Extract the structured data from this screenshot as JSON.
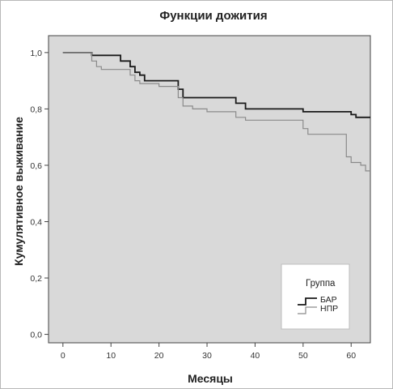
{
  "chart_data": {
    "type": "line",
    "step": true,
    "title": "Функции дожития",
    "xlabel": "Месяцы",
    "ylabel": "Кумулятивное выживание",
    "xlim": [
      -3,
      64
    ],
    "ylim": [
      -0.03,
      1.06
    ],
    "x_ticks": [
      0,
      10,
      20,
      30,
      40,
      50,
      60
    ],
    "y_ticks": [
      0,
      0.2,
      0.4,
      0.6,
      0.8,
      1.0
    ],
    "x_tick_labels": [
      "0",
      "10",
      "20",
      "30",
      "40",
      "50",
      "60"
    ],
    "y_tick_labels": [
      "0,0",
      "0,2",
      "0,4",
      "0,6",
      "0,8",
      "1,0"
    ],
    "grid": false,
    "legend": {
      "title": "Группа",
      "position": "bottom-right"
    },
    "series": [
      {
        "name": "БАР",
        "color": "#1a1a1a",
        "points": [
          [
            0,
            1.0
          ],
          [
            6,
            1.0
          ],
          [
            6,
            0.99
          ],
          [
            12,
            0.99
          ],
          [
            12,
            0.97
          ],
          [
            14,
            0.97
          ],
          [
            14,
            0.95
          ],
          [
            15,
            0.95
          ],
          [
            15,
            0.93
          ],
          [
            16,
            0.93
          ],
          [
            16,
            0.92
          ],
          [
            17,
            0.92
          ],
          [
            17,
            0.9
          ],
          [
            24,
            0.9
          ],
          [
            24,
            0.87
          ],
          [
            25,
            0.87
          ],
          [
            25,
            0.84
          ],
          [
            36,
            0.84
          ],
          [
            36,
            0.82
          ],
          [
            38,
            0.82
          ],
          [
            38,
            0.8
          ],
          [
            50,
            0.8
          ],
          [
            50,
            0.79
          ],
          [
            60,
            0.79
          ],
          [
            60,
            0.78
          ],
          [
            61,
            0.78
          ],
          [
            61,
            0.77
          ],
          [
            64,
            0.77
          ]
        ]
      },
      {
        "name": "НПР",
        "color": "#8a8a8a",
        "points": [
          [
            0,
            1.0
          ],
          [
            6,
            1.0
          ],
          [
            6,
            0.97
          ],
          [
            7,
            0.97
          ],
          [
            7,
            0.95
          ],
          [
            8,
            0.95
          ],
          [
            8,
            0.94
          ],
          [
            14,
            0.94
          ],
          [
            14,
            0.92
          ],
          [
            15,
            0.92
          ],
          [
            15,
            0.9
          ],
          [
            16,
            0.9
          ],
          [
            16,
            0.89
          ],
          [
            20,
            0.89
          ],
          [
            20,
            0.88
          ],
          [
            24,
            0.88
          ],
          [
            24,
            0.84
          ],
          [
            25,
            0.84
          ],
          [
            25,
            0.81
          ],
          [
            27,
            0.81
          ],
          [
            27,
            0.8
          ],
          [
            30,
            0.8
          ],
          [
            30,
            0.79
          ],
          [
            36,
            0.79
          ],
          [
            36,
            0.77
          ],
          [
            38,
            0.77
          ],
          [
            38,
            0.76
          ],
          [
            50,
            0.76
          ],
          [
            50,
            0.73
          ],
          [
            51,
            0.73
          ],
          [
            51,
            0.71
          ],
          [
            59,
            0.71
          ],
          [
            59,
            0.63
          ],
          [
            60,
            0.63
          ],
          [
            60,
            0.61
          ],
          [
            62,
            0.61
          ],
          [
            62,
            0.6
          ],
          [
            63,
            0.6
          ],
          [
            63,
            0.58
          ],
          [
            64,
            0.58
          ]
        ]
      }
    ]
  }
}
